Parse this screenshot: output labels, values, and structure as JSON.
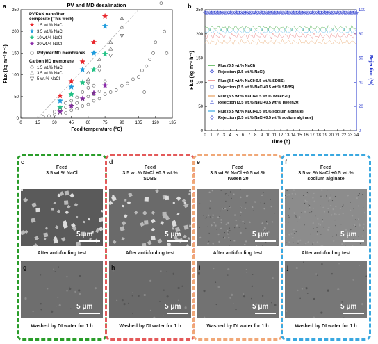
{
  "panels": {
    "a_letter": "a",
    "b_letter": "b",
    "c_letter": "c",
    "d_letter": "d",
    "e_letter": "e",
    "f_letter": "f",
    "g_letter": "g",
    "h_letter": "h",
    "i_letter": "i",
    "j_letter": "j"
  },
  "feeds": {
    "c": [
      "Feed",
      "3.5 wt.% NaCl"
    ],
    "d": [
      "Feed",
      "3.5 wt.% NaCl +0.5 wt.%",
      "SDBS"
    ],
    "e": [
      "Feed",
      "3.5 wt.% NaCl +0.5 wt.%",
      "Tween 20"
    ],
    "f": [
      "Feed",
      "3.5 wt.% NaCl +0.5 wt.%",
      "sodium alginate"
    ]
  },
  "captions": {
    "after": "After anti-fouling test",
    "washed": "Washed by DI water for 1 h",
    "scale": "5 μm"
  },
  "colors": {
    "green": "#2a9d2a",
    "red": "#e35a5a",
    "orange": "#f0a878",
    "blue": "#3aa8e0"
  },
  "chart_data": [
    {
      "type": "scatter",
      "title": "PV and MD desalination",
      "xlabel": "Feed temperature (°C)",
      "ylabel": "Flux (kg m⁻² h⁻¹)",
      "xlim": [
        0,
        135
      ],
      "ylim": [
        0,
        250
      ],
      "xticks": [
        0,
        15,
        30,
        45,
        60,
        75,
        90,
        105,
        120,
        135
      ],
      "yticks": [
        0,
        50,
        100,
        150,
        200,
        250
      ],
      "legend": {
        "group1_title": "PV/PAN nanofiber composite (This work)",
        "group1": [
          "1.5 wt.% NaCl",
          "3.5 wt.% NaCl",
          "10 wt.% NaCl",
          "20 wt.% NaCl"
        ],
        "polymer": "Polymer MD membranes",
        "group2_title": "Carbon MD membrane",
        "group2": [
          "1.5 wt.% NaCl",
          "3.5 wt.% NaCl",
          "5 wt.% NaCl"
        ]
      },
      "series": [
        {
          "name": "1.5 wt.% NaCl",
          "marker": "star",
          "color": "#e8262c",
          "points": [
            [
              35,
              52
            ],
            [
              45,
              85
            ],
            [
              55,
              130
            ],
            [
              65,
              175
            ],
            [
              75,
              235
            ]
          ]
        },
        {
          "name": "3.5 wt.% NaCl",
          "marker": "star",
          "color": "#1f9bdc",
          "points": [
            [
              35,
              40
            ],
            [
              45,
              72
            ],
            [
              55,
              112
            ],
            [
              65,
              150
            ],
            [
              75,
              212
            ]
          ]
        },
        {
          "name": "10 wt.% NaCl",
          "marker": "star",
          "color": "#23c185",
          "points": [
            [
              35,
              25
            ],
            [
              45,
              55
            ],
            [
              55,
              82
            ],
            [
              65,
              112
            ],
            [
              75,
              148
            ]
          ]
        },
        {
          "name": "20 wt.% NaCl",
          "marker": "star",
          "color": "#8a2aa8",
          "points": [
            [
              35,
              15
            ],
            [
              45,
              28
            ],
            [
              55,
              45
            ],
            [
              65,
              58
            ],
            [
              75,
              75
            ]
          ]
        },
        {
          "name": "Polymer MD membranes",
          "marker": "circle",
          "color": "#555555",
          "points": [
            [
              20,
              3
            ],
            [
              25,
              5
            ],
            [
              30,
              8
            ],
            [
              30,
              15
            ],
            [
              35,
              10
            ],
            [
              35,
              20
            ],
            [
              40,
              12
            ],
            [
              40,
              25
            ],
            [
              40,
              35
            ],
            [
              45,
              18
            ],
            [
              45,
              30
            ],
            [
              45,
              40
            ],
            [
              50,
              22
            ],
            [
              50,
              35
            ],
            [
              50,
              48
            ],
            [
              55,
              28
            ],
            [
              55,
              42
            ],
            [
              55,
              60
            ],
            [
              60,
              32
            ],
            [
              60,
              50
            ],
            [
              60,
              70
            ],
            [
              65,
              40
            ],
            [
              65,
              55
            ],
            [
              65,
              75
            ],
            [
              70,
              45
            ],
            [
              70,
              62
            ],
            [
              75,
              55
            ],
            [
              75,
              85
            ],
            [
              80,
              60
            ],
            [
              85,
              65
            ],
            [
              90,
              75
            ],
            [
              95,
              80
            ],
            [
              100,
              90
            ],
            [
              105,
              95
            ],
            [
              108,
              110
            ],
            [
              110,
              60
            ],
            [
              112,
              120
            ],
            [
              115,
              135
            ],
            [
              118,
              150
            ],
            [
              120,
              175
            ],
            [
              125,
              265
            ],
            [
              128,
              200
            ],
            [
              130,
              150
            ]
          ]
        },
        {
          "name": "Carbon 1.5 wt.% NaCl",
          "marker": "triangle-up",
          "color": "#555555",
          "points": [
            [
              60,
              105
            ],
            [
              70,
              135
            ],
            [
              80,
              175
            ],
            [
              90,
              230
            ]
          ]
        },
        {
          "name": "Carbon 3.5 wt.% NaCl",
          "marker": "triangle-up",
          "color": "#555555",
          "points": [
            [
              60,
              90
            ],
            [
              70,
              120
            ],
            [
              80,
              160
            ],
            [
              90,
              210
            ]
          ]
        },
        {
          "name": "Carbon 5 wt.% NaCl",
          "marker": "triangle-down",
          "color": "#555555",
          "points": [
            [
              60,
              80
            ],
            [
              70,
              110
            ],
            [
              80,
              145
            ],
            [
              90,
              190
            ]
          ]
        }
      ]
    },
    {
      "type": "line",
      "xlabel": "Time (h)",
      "ylabel": "Flux (kg m⁻² h⁻¹)",
      "y2label": "Rejection (%)",
      "xlim": [
        0,
        24
      ],
      "ylim": [
        0,
        250
      ],
      "y2lim": [
        0,
        100
      ],
      "xticks": [
        0,
        1,
        2,
        3,
        4,
        5,
        6,
        7,
        8,
        9,
        10,
        11,
        12,
        13,
        14,
        15,
        16,
        17,
        18,
        19,
        20,
        21,
        22,
        23,
        24
      ],
      "yticks": [
        0,
        50,
        100,
        150,
        200,
        250
      ],
      "y2ticks": [
        0,
        20,
        40,
        60,
        80,
        100
      ],
      "series": [
        {
          "name": "Flux (3.5 wt.% NaCl)",
          "color": "#2ca02c",
          "mean": 212
        },
        {
          "name": "Flux (3.5 wt.% NaCl+0.5 wt.% SDBS)",
          "color": "#e56b6b",
          "mean": 196
        },
        {
          "name": "Flux (3.5 wt.% NaCl+0.5 wt.% Tween20)",
          "color": "#e8a66a",
          "mean": 183
        },
        {
          "name": "Flux (3.5 wt.% NaCl+0.5 wt.% sodium alginate)",
          "color": "#4ab0e8",
          "mean": 205
        },
        {
          "name": "Rejection (3.5 wt.% NaCl)",
          "color": "#2233cc",
          "marker": "star",
          "value": 99.9
        },
        {
          "name": "Rejection (3.5 wt.% NaCl+0.5 wt.% SDBS)",
          "color": "#2233cc",
          "marker": "square",
          "value": 99.9
        },
        {
          "name": "Rejection (3.5 wt.% NaCl+0.5 wt.% Tween20)",
          "color": "#2233cc",
          "marker": "triangle",
          "value": 99.9
        },
        {
          "name": "Rejection (3.5 wt.% NaCl+0.5 wt.% sodium alginate)",
          "color": "#2233cc",
          "marker": "diamond",
          "value": 99.9
        }
      ]
    }
  ]
}
